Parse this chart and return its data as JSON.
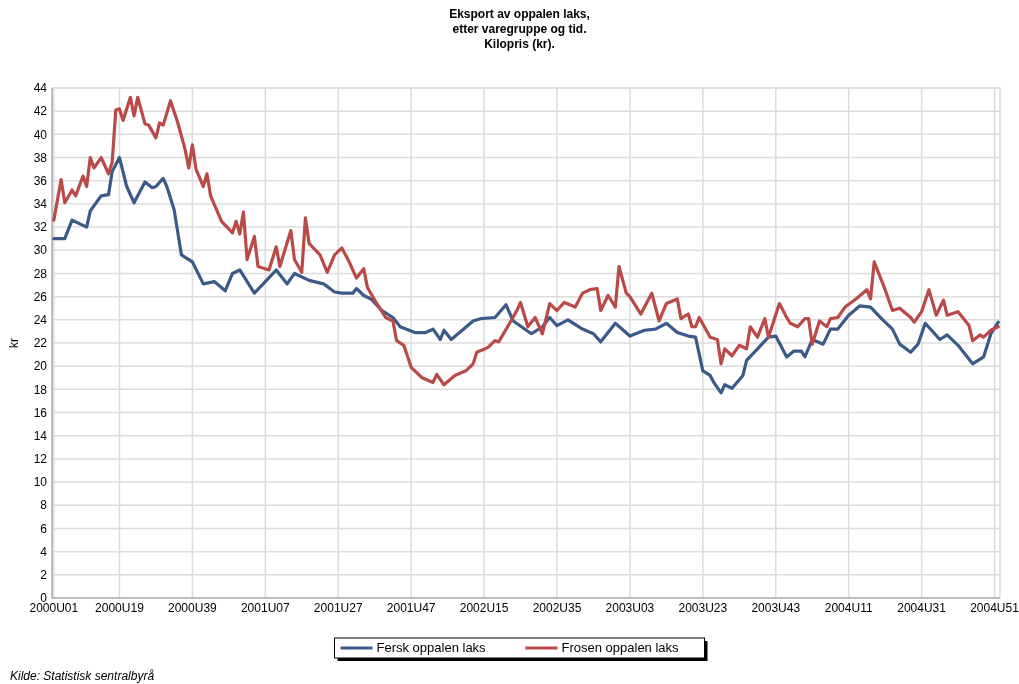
{
  "chart_data": {
    "type": "line",
    "title": "Eksport av oppalen laks,\netter varegruppe og tid.\nKilopris (kr).",
    "ylabel": "kr",
    "annotations": [
      "Kilde: Statistisk sentralbyrå"
    ],
    "categories": [
      "2000U01",
      null,
      null,
      null,
      null,
      null,
      null,
      null,
      null,
      null,
      null,
      null,
      null,
      null,
      null,
      null,
      null,
      null,
      "2000U19",
      null,
      null,
      null,
      null,
      null,
      null,
      null,
      null,
      null,
      null,
      null,
      null,
      null,
      null,
      null,
      null,
      null,
      null,
      null,
      "2000U39",
      null,
      null,
      null,
      null,
      null,
      null,
      null,
      null,
      null,
      null,
      null,
      null,
      null,
      null,
      null,
      null,
      null,
      null,
      null,
      "2001U07",
      null,
      null,
      null,
      null,
      null,
      null,
      null,
      null,
      null,
      null,
      null,
      null,
      null,
      null,
      null,
      null,
      null,
      null,
      null,
      "2001U27",
      null,
      null,
      null,
      null,
      null,
      null,
      null,
      null,
      null,
      null,
      null,
      null,
      null,
      null,
      null,
      null,
      null,
      null,
      null,
      "2001U47",
      null,
      null,
      null,
      null,
      null,
      null,
      null,
      null,
      null,
      null,
      null,
      null,
      null,
      null,
      null,
      null,
      null,
      null,
      null,
      "2002U15",
      null,
      null,
      null,
      null,
      null,
      null,
      null,
      null,
      null,
      null,
      null,
      null,
      null,
      null,
      null,
      null,
      null,
      null,
      null,
      "2002U35",
      null,
      null,
      null,
      null,
      null,
      null,
      null,
      null,
      null,
      null,
      null,
      null,
      null,
      null,
      null,
      null,
      null,
      null,
      null,
      "2003U03",
      null,
      null,
      null,
      null,
      null,
      null,
      null,
      null,
      null,
      null,
      null,
      null,
      null,
      null,
      null,
      null,
      null,
      null,
      null,
      "2003U23",
      null,
      null,
      null,
      null,
      null,
      null,
      null,
      null,
      null,
      null,
      null,
      null,
      null,
      null,
      null,
      null,
      null,
      null,
      null,
      "2003U43",
      null,
      null,
      null,
      null,
      null,
      null,
      null,
      null,
      null,
      null,
      null,
      null,
      null,
      null,
      null,
      null,
      null,
      null,
      null,
      "2004U11",
      null,
      null,
      null,
      null,
      null,
      null,
      null,
      null,
      null,
      null,
      null,
      null,
      null,
      null,
      null,
      null,
      null,
      null,
      null,
      "2004U31",
      null,
      null,
      null,
      null,
      null,
      null,
      null,
      null,
      null,
      null,
      null,
      null,
      null,
      null,
      null,
      null,
      null,
      null,
      null,
      "2004U51",
      null
    ],
    "ylim": [
      0,
      44
    ],
    "yticks": [
      0,
      2,
      4,
      6,
      8,
      10,
      12,
      14,
      16,
      18,
      20,
      22,
      24,
      26,
      28,
      30,
      32,
      34,
      36,
      38,
      40,
      42,
      44
    ],
    "grid": true,
    "legend": "bottom",
    "marker": "none",
    "line_style": "solid",
    "series": [
      {
        "name": "Fersk oppalen laks",
        "color": "#3b5a8a",
        "values": [
          31.0,
          null,
          null,
          31.0,
          null,
          32.6,
          null,
          null,
          null,
          32.0,
          33.4,
          null,
          null,
          34.7,
          null,
          34.8,
          36.8,
          null,
          38.0,
          null,
          35.5,
          null,
          34.1,
          null,
          null,
          35.9,
          null,
          35.4,
          35.5,
          null,
          36.2,
          35.5,
          null,
          33.5,
          null,
          29.6,
          null,
          null,
          29.0,
          null,
          null,
          27.1,
          null,
          null,
          27.3,
          null,
          null,
          26.5,
          null,
          28.0,
          null,
          28.3,
          null,
          null,
          null,
          26.3,
          null,
          null,
          27.3,
          null,
          null,
          28.3,
          null,
          null,
          27.1,
          null,
          28.0,
          null,
          null,
          null,
          27.4,
          null,
          null,
          null,
          27.1,
          null,
          null,
          26.4,
          null,
          26.3,
          null,
          null,
          26.3,
          26.7,
          null,
          26.1,
          null,
          25.8,
          null,
          null,
          24.8,
          null,
          null,
          24.2,
          null,
          23.4,
          null,
          null,
          null,
          22.9,
          null,
          null,
          22.9,
          null,
          23.2,
          null,
          22.3,
          23.1,
          null,
          22.3,
          null,
          null,
          23.1,
          null,
          null,
          23.9,
          null,
          24.1,
          null,
          null,
          null,
          24.2,
          null,
          null,
          25.3,
          null,
          23.9,
          null,
          null,
          null,
          null,
          22.8,
          null,
          null,
          23.4,
          null,
          24.2,
          null,
          23.5,
          null,
          null,
          24.0,
          null,
          null,
          null,
          23.2,
          null,
          null,
          22.8,
          null,
          22.1,
          null,
          null,
          null,
          23.7,
          null,
          null,
          null,
          22.6,
          null,
          null,
          null,
          23.1,
          null,
          null,
          23.2,
          null,
          null,
          23.7,
          null,
          null,
          22.9,
          null,
          null,
          22.6,
          null,
          22.5,
          null,
          19.6,
          null,
          19.2,
          18.6,
          null,
          17.7,
          18.4,
          null,
          18.1,
          null,
          null,
          19.2,
          20.5,
          null,
          null,
          21.5,
          null,
          null,
          22.5,
          null,
          22.6,
          null,
          null,
          20.8,
          null,
          21.3,
          null,
          21.3,
          20.8,
          null,
          22.3,
          null,
          null,
          21.9,
          null,
          23.2,
          null,
          23.2,
          null,
          null,
          24.4,
          null,
          null,
          25.2,
          null,
          null,
          25.1,
          null,
          null,
          24.1,
          null,
          null,
          23.2,
          null,
          21.9,
          null,
          null,
          21.2,
          null,
          21.9,
          null,
          23.7,
          null,
          null,
          null,
          22.3,
          null,
          22.7,
          null,
          null,
          21.8,
          null,
          null,
          null,
          20.2,
          null,
          null,
          20.8,
          null,
          22.8,
          null,
          23.8
        ]
      },
      {
        "name": "Frosen oppalen laks",
        "color": "#b94a48",
        "values": [
          32.6,
          null,
          36.1,
          34.1,
          null,
          35.2,
          34.7,
          null,
          36.4,
          35.5,
          38.0,
          37.1,
          null,
          38.0,
          null,
          36.6,
          37.6,
          42.1,
          42.2,
          41.2,
          null,
          43.2,
          41.6,
          43.2,
          null,
          40.9,
          40.8,
          null,
          39.7,
          41.0,
          40.8,
          null,
          42.9,
          null,
          41.0,
          null,
          38.7,
          37.1,
          39.1,
          37.0,
          null,
          35.5,
          36.6,
          34.7,
          null,
          null,
          32.5,
          null,
          null,
          31.5,
          32.5,
          31.4,
          33.3,
          29.2,
          null,
          31.2,
          28.6,
          null,
          null,
          28.3,
          null,
          30.3,
          28.6,
          null,
          null,
          31.7,
          29.2,
          null,
          28.1,
          32.8,
          30.6,
          null,
          null,
          29.6,
          null,
          28.1,
          null,
          29.6,
          null,
          30.2,
          null,
          29.0,
          null,
          27.6,
          null,
          28.4,
          26.8,
          null,
          25.7,
          null,
          null,
          24.2,
          null,
          23.9,
          22.2,
          null,
          21.8,
          null,
          19.9,
          null,
          null,
          19.0,
          null,
          null,
          18.6,
          19.3,
          null,
          18.4,
          null,
          null,
          19.2,
          null,
          null,
          19.6,
          null,
          20.2,
          21.2,
          null,
          null,
          21.6,
          null,
          22.2,
          22.1,
          null,
          null,
          23.7,
          null,
          24.8,
          25.5,
          null,
          23.4,
          null,
          24.2,
          null,
          22.8,
          null,
          25.4,
          null,
          24.8,
          null,
          25.5,
          null,
          null,
          25.1,
          null,
          26.3,
          null,
          26.6,
          null,
          26.7,
          24.8,
          null,
          26.1,
          null,
          25.1,
          28.6,
          null,
          26.3,
          26.0,
          null,
          null,
          24.5,
          25.1,
          null,
          26.3,
          null,
          23.9,
          null,
          25.4,
          null,
          null,
          25.8,
          24.1,
          null,
          24.5,
          23.4,
          23.4,
          24.2,
          null,
          null,
          22.5,
          null,
          22.3,
          20.2,
          21.5,
          null,
          20.9,
          null,
          21.8,
          null,
          21.5,
          23.4,
          null,
          22.5,
          null,
          24.1,
          22.5,
          null,
          null,
          25.4,
          null,
          24.2,
          23.7,
          null,
          23.4,
          null,
          24.1,
          24.1,
          21.9,
          null,
          23.9,
          null,
          23.4,
          24.1,
          null,
          24.2,
          null,
          25.1,
          null,
          null,
          25.8,
          null,
          null,
          26.6,
          25.8,
          29.0,
          null,
          27.4,
          26.6,
          null,
          24.8,
          null,
          25.0,
          null,
          null,
          24.2,
          23.8,
          null,
          24.7,
          null,
          26.6,
          null,
          24.4,
          null,
          25.7,
          24.4,
          null,
          null,
          24.7,
          null,
          null,
          23.5,
          22.2,
          null,
          22.7,
          22.5,
          null,
          23.1,
          null,
          23.4
        ]
      }
    ]
  }
}
